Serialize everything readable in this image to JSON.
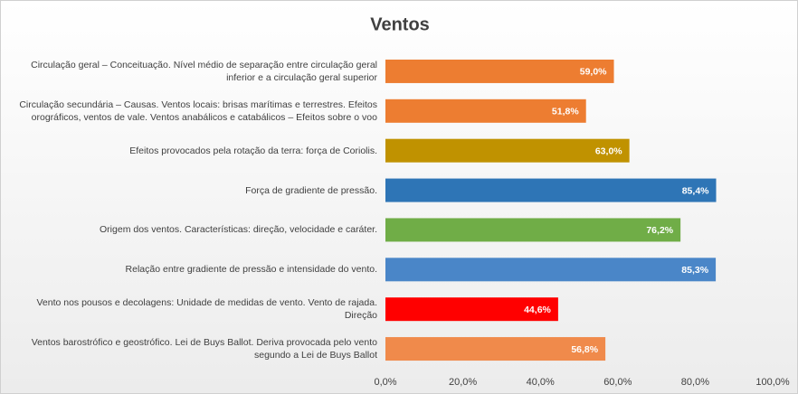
{
  "chart_data": {
    "type": "bar",
    "orientation": "horizontal",
    "title": "Ventos",
    "categories": [
      "Circulação geral – Conceituação. Nível médio de separação entre circulação geral inferior e a circulação geral superior",
      "Circulação secundária – Causas. Ventos locais: brisas marítimas e terrestres. Efeitos orográficos, ventos de vale. Ventos anabálicos e catabálicos – Efeitos sobre o voo",
      "Efeitos provocados pela rotação da terra: força de Coriolis.",
      "Força de gradiente de pressão.",
      "Origem dos ventos. Características: direção, velocidade e caráter.",
      "Relação entre gradiente de pressão e intensidade do vento.",
      "Vento nos pousos e decolagens: Unidade de medidas de vento. Vento de rajada. Direção",
      "Ventos barostrófico e geostrófico. Lei de Buys Ballot. Deriva provocada pelo vento segundo a Lei de Buys Ballot"
    ],
    "values": [
      59.0,
      51.8,
      63.0,
      85.4,
      76.2,
      85.3,
      44.6,
      56.8
    ],
    "value_labels": [
      "59,0%",
      "51,8%",
      "63,0%",
      "85,4%",
      "76,2%",
      "85,3%",
      "44,6%",
      "56,8%"
    ],
    "colors": [
      "#ed7d31",
      "#ed7d31",
      "#c09200",
      "#2e75b6",
      "#70ad47",
      "#4a86c8",
      "#ff0000",
      "#f08a4b"
    ],
    "xlim": [
      0,
      100
    ],
    "xticks": [
      {
        "value": 0,
        "label": "0,0%"
      },
      {
        "value": 20,
        "label": "20,0%"
      },
      {
        "value": 40,
        "label": "40,0%"
      },
      {
        "value": 60,
        "label": "60,0%"
      },
      {
        "value": 80,
        "label": "80,0%"
      },
      {
        "value": 100,
        "label": "100,0%"
      }
    ],
    "grid": false
  }
}
